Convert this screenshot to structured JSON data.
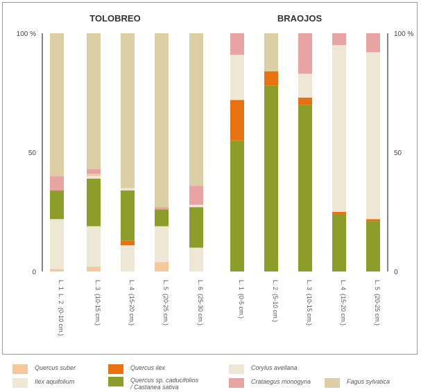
{
  "chart_data": {
    "type": "bar",
    "stacked": true,
    "percent": true,
    "groups": [
      {
        "title": "TOLOBREO",
        "categories": [
          "L. 1 L. 2 (0-10 cm.)",
          "L. 3 (10-15 cm.)",
          "L. 4 (15-20 cm.)",
          "L. 5 (20-25 cm.)",
          "L. 6 (25-30 cm.)"
        ],
        "tick_labels": [
          [
            "L. 1",
            "L. 2",
            "(0-10 cm.)"
          ],
          [
            "L. 3",
            "(10-15 cm.)"
          ],
          [
            "L. 4",
            "(15-20 cm.)"
          ],
          [
            "L. 5",
            "(20-25 cm.)"
          ],
          [
            "L. 6",
            "(25-30 cm.)"
          ]
        ]
      },
      {
        "title": "BRAOJOS",
        "categories": [
          "L. 1 (0-5 cm.)",
          "L. 2 (5-10 cm.)",
          "L. 3 (10-15 cm.)",
          "L. 4 (15-20 cm.)",
          "L. 5 (20-25 cm.)"
        ],
        "tick_labels": [
          [
            "L. 1",
            "(0-5 cm.)"
          ],
          [
            "L. 2",
            "(5-10 cm.)"
          ],
          [
            "L. 3",
            "(10-15 cm.)"
          ],
          [
            "L. 4",
            "(15-20 cm.)"
          ],
          [
            "L. 5",
            "(20-25 cm.)"
          ]
        ]
      }
    ],
    "series": [
      {
        "name": "Quercus suber",
        "color": "#f5c79a",
        "values": [
          1,
          2,
          0,
          4,
          0,
          0,
          0,
          0,
          0,
          0
        ]
      },
      {
        "name": "Ilex aquifolium",
        "color": "#efe7d6",
        "values": [
          21,
          17,
          11,
          15,
          10,
          0,
          0,
          0,
          0,
          0
        ]
      },
      {
        "name": "Quercus ilex",
        "color": "#e8720f",
        "values": [
          0,
          0,
          2,
          0,
          0,
          0,
          0,
          0,
          0,
          0
        ]
      },
      {
        "name": "Quercus sp. caducifolios / Castanea sativa",
        "color": "#8d9d2a",
        "values": [
          12,
          20,
          21,
          7,
          17,
          55,
          78,
          70,
          24,
          21
        ]
      },
      {
        "name": "Quercus ilex",
        "color": "#e8720f",
        "values": [
          0,
          0,
          0,
          0,
          0,
          17,
          6,
          3,
          1,
          1
        ]
      },
      {
        "name": "Corylus avellana",
        "color": "#efe7d6",
        "values": [
          0,
          1,
          1,
          0,
          1,
          19,
          0,
          10,
          70,
          70
        ]
      },
      {
        "name": "Quercus suber",
        "color": "#f5c79a",
        "values": [
          0,
          1,
          0,
          0,
          0,
          0,
          0,
          0,
          0,
          0
        ]
      },
      {
        "name": "Crataegus monogyna",
        "color": "#e8a4a2",
        "values": [
          6,
          2,
          0,
          1,
          8,
          9,
          0,
          17,
          5,
          8
        ]
      },
      {
        "name": "Fagus sylvatica",
        "color": "#dccfa6",
        "values": [
          60,
          57,
          65,
          73,
          64,
          0,
          16,
          0,
          0,
          0
        ]
      }
    ],
    "ylim": [
      0,
      100
    ],
    "y_ticks_left": [
      "100 %",
      "50",
      "0"
    ],
    "y_ticks_right": [
      "100 %",
      "50",
      "0"
    ],
    "grid": false,
    "legend_position": "bottom"
  },
  "legend": [
    {
      "label": "Quercus suber",
      "color": "#f5c79a"
    },
    {
      "label": "Quercus ilex",
      "color": "#e8720f"
    },
    {
      "label": "Corylus avellana",
      "color": "#efe7d6"
    },
    {
      "label": "Ilex aquifolium",
      "color": "#efe7d6"
    },
    {
      "label": "Quercus sp. caducifolios\n/ Castanea sativa",
      "color": "#8d9d2a"
    },
    {
      "label": "Crataegus monogyna",
      "color": "#e8a4a2"
    },
    {
      "label": "Fagus sylvatica",
      "color": "#dccfa6"
    }
  ]
}
